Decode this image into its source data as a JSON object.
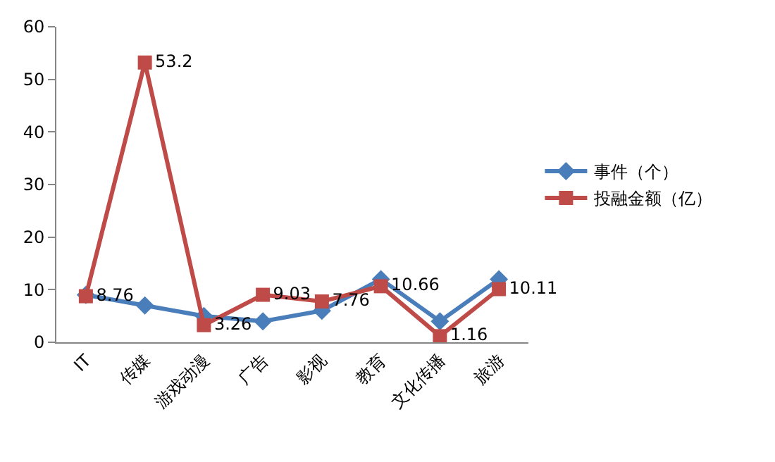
{
  "chart_data": {
    "type": "line",
    "categories": [
      "IT",
      "传媒",
      "游戏动漫",
      "广告",
      "影视",
      "教育",
      "文化传播",
      "旅游"
    ],
    "series": [
      {
        "name": "事件（个）",
        "color": "#4a7ebb",
        "marker": "diamond",
        "values": [
          9,
          7,
          5,
          4,
          6,
          12,
          4,
          12
        ]
      },
      {
        "name": "投融金额（亿）",
        "color": "#be4b48",
        "marker": "square",
        "values": [
          8.76,
          53.2,
          3.26,
          9.03,
          7.76,
          10.66,
          1.16,
          10.11
        ],
        "value_labels": [
          "8.76",
          "53.2",
          "3.26",
          "9.03",
          "7.76",
          "10.66",
          "1.16",
          "10.11"
        ]
      }
    ],
    "ylim": [
      0,
      60
    ],
    "yticks": [
      0,
      10,
      20,
      30,
      40,
      50,
      60
    ],
    "grid": false,
    "legend": "right"
  }
}
